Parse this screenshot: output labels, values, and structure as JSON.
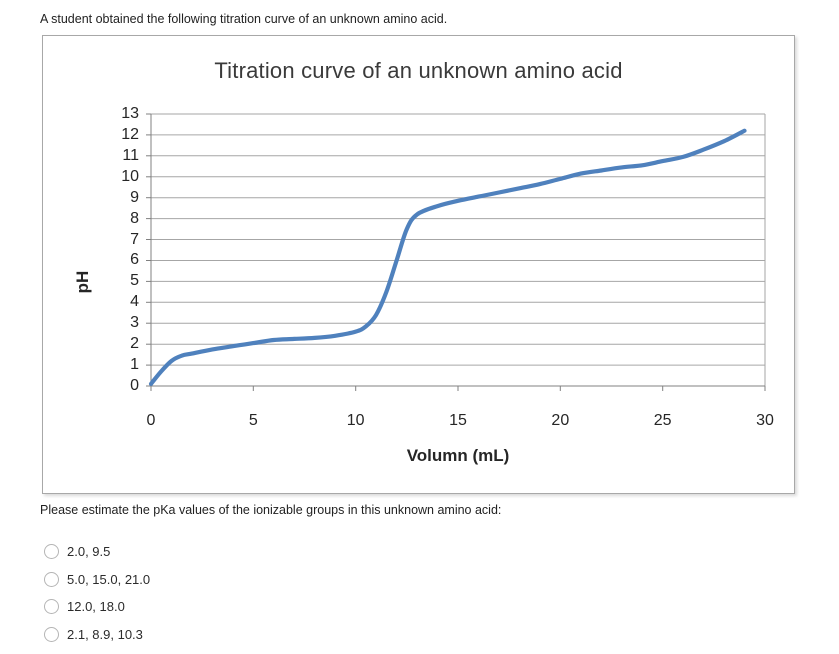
{
  "page": {
    "prompt": "A student obtained the following titration curve of an unknown amino acid.",
    "question": "Please estimate the pKa values of the ionizable groups in this unknown amino acid:",
    "options": [
      "2.0, 9.5",
      "5.0, 15.0, 21.0",
      "12.0, 18.0",
      "2.1, 8.9, 10.3"
    ],
    "radio_icon": "radio-unchecked"
  },
  "chart_data": {
    "type": "line",
    "title": "Titration curve of an unknown amino acid",
    "xlabel": "Volumn (mL)",
    "ylabel": "pH",
    "xlim": [
      0,
      30
    ],
    "ylim": [
      0,
      13
    ],
    "x_ticks": [
      0,
      5,
      10,
      15,
      20,
      25,
      30
    ],
    "y_ticks": [
      0,
      1,
      2,
      3,
      4,
      5,
      6,
      7,
      8,
      9,
      10,
      11,
      12,
      13
    ],
    "grid": "horizontal-only",
    "legend": "none",
    "line_color": "#4F81BD",
    "grid_color": "#a6a6a6",
    "axis_color": "#808080",
    "series": [
      {
        "name": "pH",
        "x": [
          0,
          0.5,
          1,
          1.5,
          2,
          3,
          4,
          5,
          6,
          7,
          8,
          9,
          10,
          10.5,
          11,
          11.5,
          12,
          12.5,
          13,
          14,
          15,
          16,
          17,
          18,
          19,
          20,
          21,
          22,
          23,
          24,
          25,
          26,
          27,
          28,
          29
        ],
        "y": [
          0.1,
          0.7,
          1.2,
          1.45,
          1.55,
          1.75,
          1.9,
          2.05,
          2.2,
          2.25,
          2.3,
          2.4,
          2.6,
          2.85,
          3.4,
          4.5,
          6.0,
          7.5,
          8.2,
          8.6,
          8.85,
          9.05,
          9.25,
          9.45,
          9.65,
          9.9,
          10.15,
          10.3,
          10.45,
          10.55,
          10.75,
          10.95,
          11.3,
          11.7,
          12.2
        ]
      }
    ],
    "notable_features": "buffer plateaus near pH 2.1, 8.9 and 10.3; steep equivalence jump near 12 mL"
  }
}
